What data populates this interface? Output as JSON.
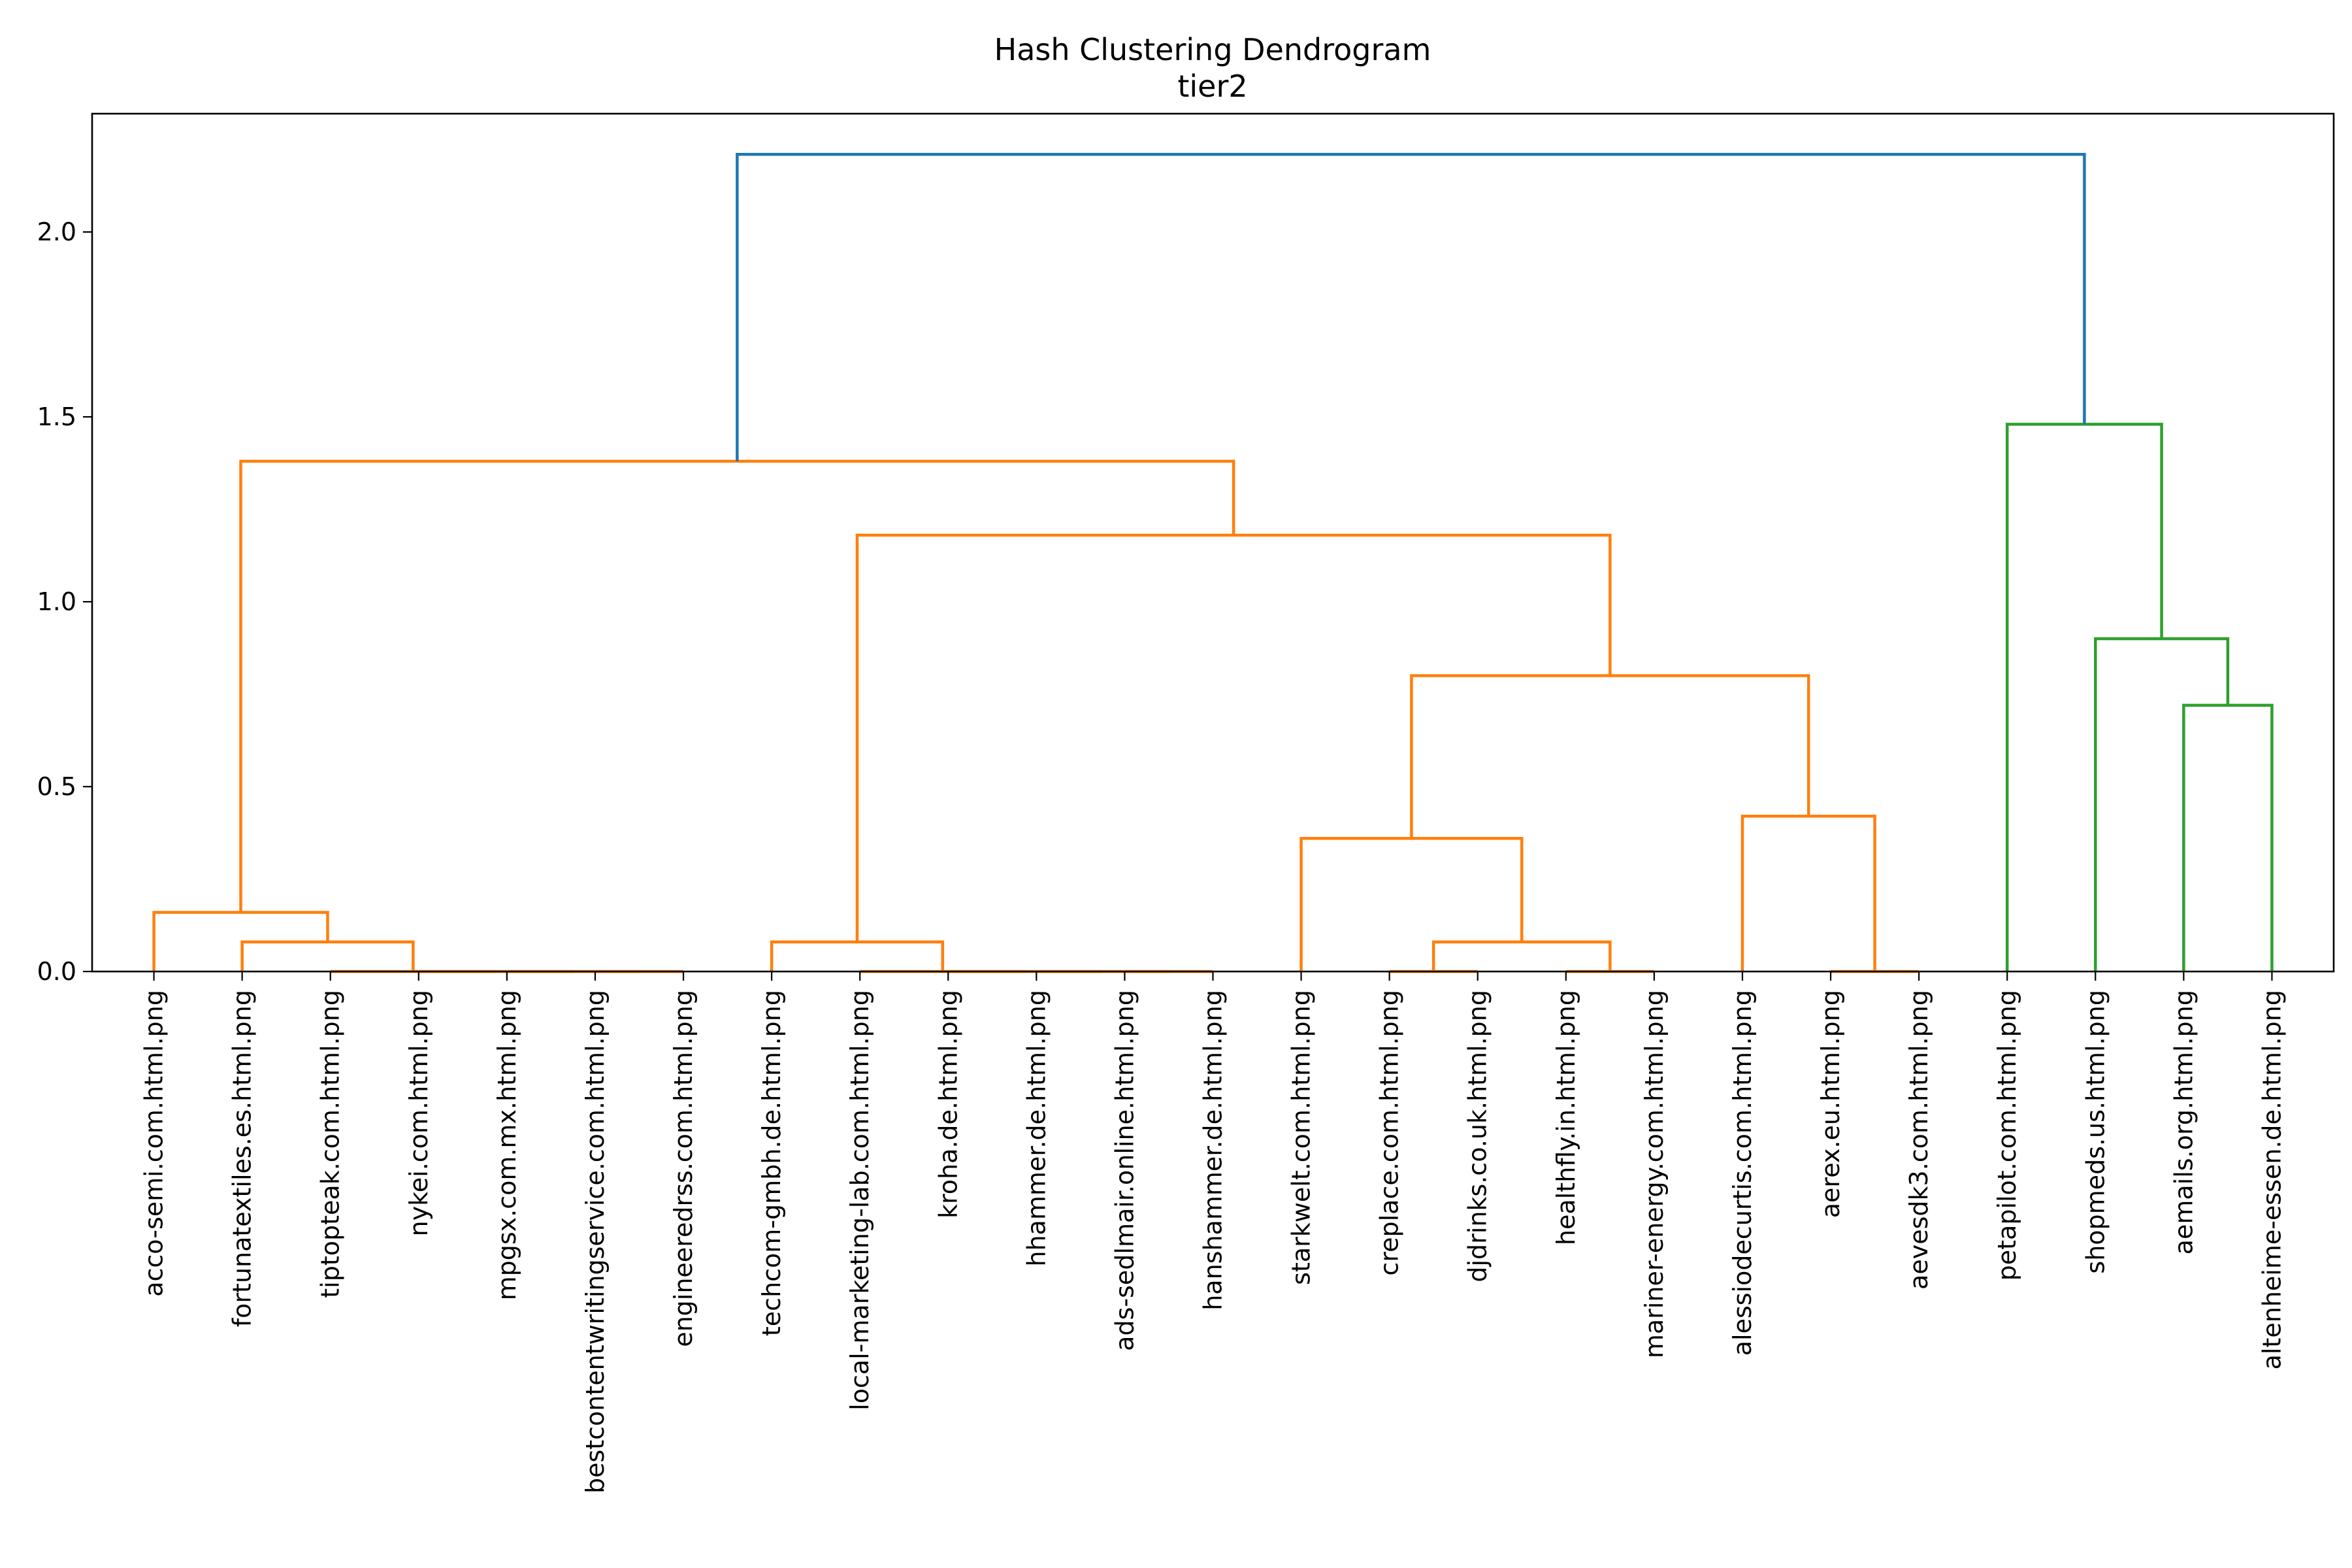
{
  "chart_data": {
    "type": "dendrogram",
    "title": "Hash Clustering Dendrogram",
    "subtitle": "tier2",
    "xlabel": "",
    "ylabel": "",
    "ylim": [
      0,
      2.32
    ],
    "yticks": [
      "0.0",
      "0.5",
      "1.0",
      "1.5",
      "2.0"
    ],
    "grid": false,
    "colors": {
      "cluster1": "#ff7f0e",
      "cluster2": "#2ca02c",
      "root": "#1f77b4"
    },
    "leaves": [
      "acco-semi.com.html.png",
      "fortunatextiles.es.html.png",
      "tiptopteak.com.html.png",
      "nykei.com.html.png",
      "mpgsx.com.mx.html.png",
      "bestcontentwritingservice.com.html.png",
      "engineeredrss.com.html.png",
      "techcom-gmbh.de.html.png",
      "local-marketing-lab.com.html.png",
      "kroha.de.html.png",
      "hhammer.de.html.png",
      "ads-sedlmair.online.html.png",
      "hanshammer.de.html.png",
      "starkwelt.com.html.png",
      "creplace.com.html.png",
      "djdrinks.co.uk.html.png",
      "healthfly.in.html.png",
      "mariner-energy.com.html.png",
      "alessiodecurtis.com.html.png",
      "aerex.eu.html.png",
      "aevesdk3.com.html.png",
      "petapilot.com.html.png",
      "shopmeds.us.html.png",
      "aemails.org.html.png",
      "altenheime-essen.de.html.png"
    ],
    "merges": [
      {
        "a": "L6",
        "b": "L7",
        "h": 0.0,
        "c": "cluster1"
      },
      {
        "a": "L5",
        "b": "N0",
        "h": 0.0,
        "c": "cluster1"
      },
      {
        "a": "L4",
        "b": "N1",
        "h": 0.0,
        "c": "cluster1"
      },
      {
        "a": "L3",
        "b": "N2",
        "h": 0.0,
        "c": "cluster1"
      },
      {
        "a": "L2",
        "b": "N3",
        "h": 0.08,
        "c": "cluster1"
      },
      {
        "a": "L1",
        "b": "N4",
        "h": 0.16,
        "c": "cluster1"
      },
      {
        "a": "L12",
        "b": "L13",
        "h": 0.0,
        "c": "cluster1"
      },
      {
        "a": "L11",
        "b": "N6",
        "h": 0.0,
        "c": "cluster1"
      },
      {
        "a": "L10",
        "b": "N7",
        "h": 0.0,
        "c": "cluster1"
      },
      {
        "a": "L9",
        "b": "N8",
        "h": 0.0,
        "c": "cluster1"
      },
      {
        "a": "L8",
        "b": "N9",
        "h": 0.08,
        "c": "cluster1"
      },
      {
        "a": "L15",
        "b": "L16",
        "h": 0.0,
        "c": "cluster1"
      },
      {
        "a": "L17",
        "b": "L18",
        "h": 0.0,
        "c": "cluster1"
      },
      {
        "a": "N11",
        "b": "N12",
        "h": 0.08,
        "c": "cluster1"
      },
      {
        "a": "L14",
        "b": "N13",
        "h": 0.36,
        "c": "cluster1"
      },
      {
        "a": "L20",
        "b": "L21",
        "h": 0.0,
        "c": "cluster1"
      },
      {
        "a": "L19",
        "b": "N15",
        "h": 0.42,
        "c": "cluster1"
      },
      {
        "a": "N14",
        "b": "N16",
        "h": 0.8,
        "c": "cluster1"
      },
      {
        "a": "N10",
        "b": "N17",
        "h": 1.18,
        "c": "cluster1"
      },
      {
        "a": "N5",
        "b": "N18",
        "h": 1.38,
        "c": "cluster1"
      },
      {
        "a": "L24",
        "b": "L25",
        "h": 0.72,
        "c": "cluster2"
      },
      {
        "a": "L23",
        "b": "N20",
        "h": 0.9,
        "c": "cluster2"
      },
      {
        "a": "L22",
        "b": "N21",
        "h": 1.48,
        "c": "cluster2"
      },
      {
        "a": "N19",
        "b": "N22",
        "h": 2.21,
        "c": "root"
      }
    ]
  }
}
